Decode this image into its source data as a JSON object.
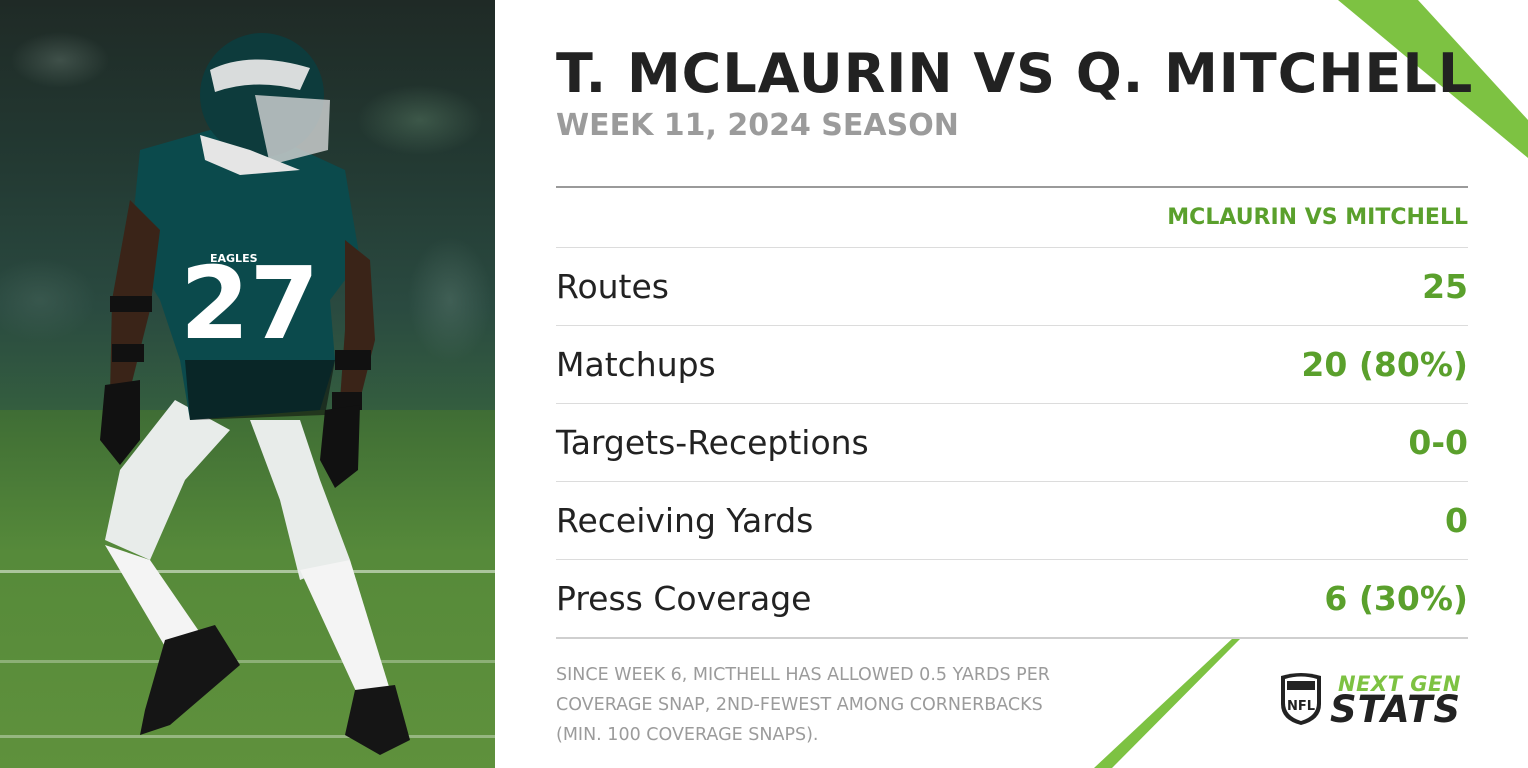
{
  "header": {
    "title": "T. MCLAURIN VS Q. MITCHELL",
    "subtitle": "WEEK 11, 2024 SEASON"
  },
  "table": {
    "column_header": "MCLAURIN VS MITCHELL",
    "rows": [
      {
        "label": "Routes",
        "value": "25"
      },
      {
        "label": "Matchups",
        "value": "20 (80%)"
      },
      {
        "label": "Targets-Receptions",
        "value": "0-0"
      },
      {
        "label": "Receiving Yards",
        "value": "0"
      },
      {
        "label": "Press Coverage",
        "value": "6 (30%)"
      }
    ]
  },
  "footnote": {
    "lines": [
      "SINCE WEEK 6, MICTHELL HAS ALLOWED 0.5 YARDS PER",
      "COVERAGE SNAP, 2ND-FEWEST AMONG CORNERBACKS",
      "(MIN. 100 COVERAGE SNAPS)."
    ]
  },
  "logo": {
    "shield_text": "NFL",
    "line1": "NEXT GEN",
    "line2": "STATS"
  },
  "photo": {
    "jersey_number": "27",
    "jersey_text": "EAGLES"
  },
  "colors": {
    "accent_green": "#5aa02c",
    "slash_green": "#7dc242",
    "title_dark": "#222222",
    "subtitle_gray": "#9b9b9b",
    "jersey_teal": "#0b4a4c"
  }
}
